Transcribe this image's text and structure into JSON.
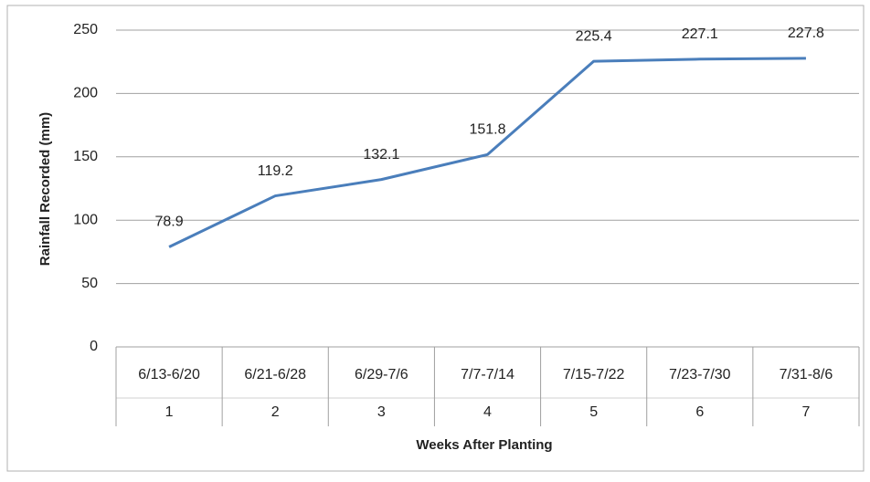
{
  "chart_data": {
    "type": "line",
    "y_label": "Rainfall Recorded (mm)",
    "x_label": "Weeks After Planting",
    "categories": [
      "6/13-6/20",
      "6/21-6/28",
      "6/29-7/6",
      "7/7-7/14",
      "7/15-7/22",
      "7/23-7/30",
      "7/31-8/6"
    ],
    "week_labels": [
      "1",
      "2",
      "3",
      "4",
      "5",
      "6",
      "7"
    ],
    "values": [
      78.9,
      119.2,
      132.1,
      151.8,
      225.4,
      227.1,
      227.8
    ],
    "color": "#4a7ebb",
    "ylim": [
      0,
      250
    ],
    "yticks": [
      0,
      50,
      100,
      150,
      200,
      250
    ],
    "grid": true
  }
}
